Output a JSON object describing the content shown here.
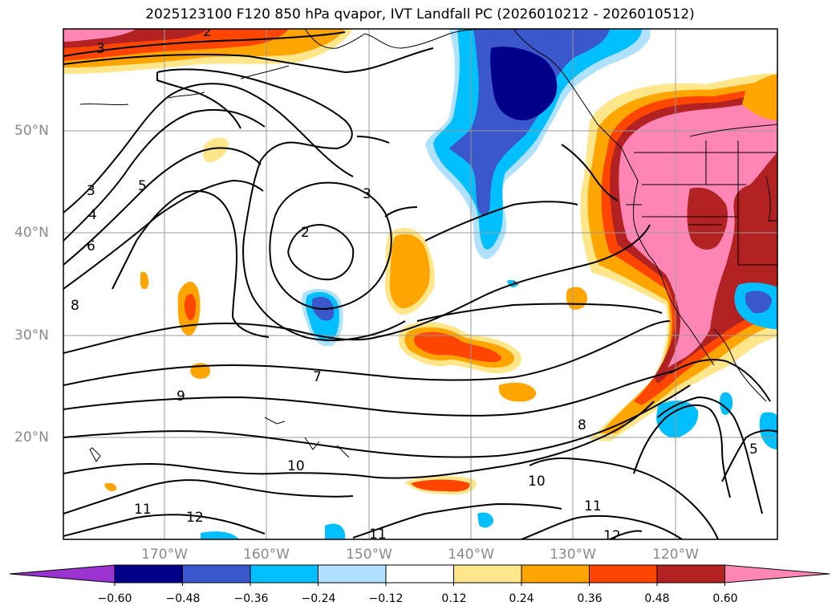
{
  "title": "2025123100 F120 850 hPa qvapor, IVT Landfall PC (2026010212 - 2026010512)",
  "lon_labels": [
    "170°W",
    "160°W",
    "150°W",
    "140°W",
    "130°W",
    "120°W"
  ],
  "lat_labels": [
    "50°N",
    "40°N",
    "30°N",
    "20°N"
  ],
  "colorbar": {
    "colors": [
      "#9a33d0",
      "#00008b",
      "#3a57cc",
      "#00bfff",
      "#b0e2ff",
      "#ffffff",
      "#ffe68a",
      "#ffa500",
      "#ff4500",
      "#b22222",
      "#ff85b4"
    ],
    "ticks": [
      "−0.60",
      "−0.48",
      "−0.36",
      "−0.24",
      "−0.12",
      "0.12",
      "0.24",
      "0.36",
      "0.48",
      "0.60"
    ]
  },
  "contour_labels": [
    "3",
    "2",
    "3",
    "5",
    "4",
    "6",
    "8",
    "2",
    "3",
    "7",
    "9",
    "8",
    "10",
    "10",
    "11",
    "12",
    "11",
    "11",
    "12",
    "5"
  ],
  "icons": [
    "colorbar-extend-min-triangle",
    "colorbar-extend-max-triangle"
  ]
}
